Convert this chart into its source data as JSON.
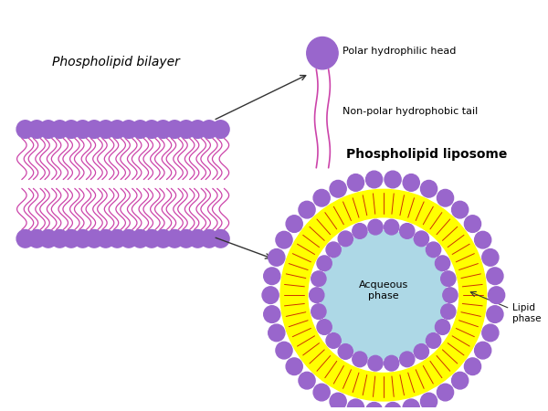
{
  "bg_color": "#ffffff",
  "head_color": "#9966cc",
  "tail_color": "#cc44aa",
  "yellow_color": "#ffff00",
  "aqueous_color": "#add8e6",
  "text_color": "#000000",
  "arrow_color": "#333333",
  "bilayer_title": "Phospholipid bilayer",
  "liposome_title": "Phospholipid liposome",
  "label_head": "Polar hydrophilic head",
  "label_tail": "Non-polar hydrophobic tail",
  "label_aqueous": "Acqueous\nphase",
  "label_lipid": "Lipid\nphase"
}
